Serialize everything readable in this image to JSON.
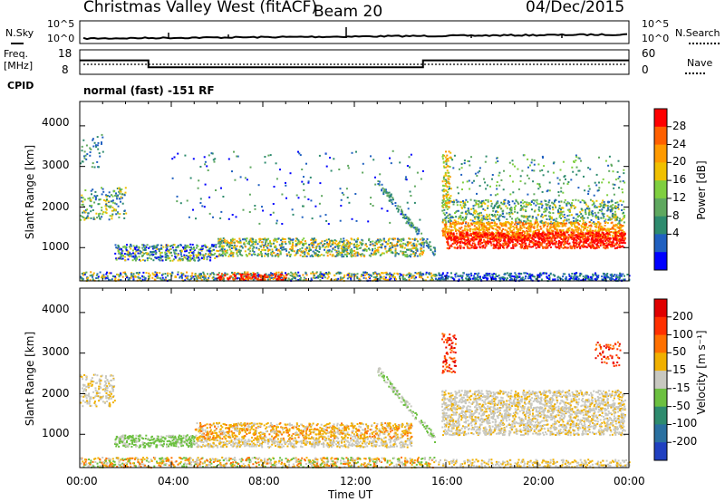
{
  "header": {
    "station": "Christmas Valley West (fitACF)",
    "beam": "Beam 20",
    "date": "04/Dec/2015"
  },
  "strip": {
    "nsky_label": "N.Sky",
    "nsky_ticks": [
      "10^5",
      "10^0"
    ],
    "nsearch_label": "N.Search",
    "nsearch_ticks": [
      "10^5",
      "10^0"
    ],
    "freq_label_1": "Freq.",
    "freq_label_2": "[MHz]",
    "freq_ticks": [
      "18",
      "8"
    ],
    "nave_label": "Nave",
    "nave_ticks": [
      "60",
      "0"
    ],
    "cpid_label": "CPID",
    "cpid_text": "normal (fast) -151 RF"
  },
  "panels": {
    "power": {
      "ylabel": "Slant Range [km]",
      "yticks": [
        "4000",
        "3000",
        "2000",
        "1000"
      ],
      "colorbar_label": "Power [dB]",
      "colorbar_ticks": [
        "28",
        "24",
        "20",
        "16",
        "12",
        "8",
        "4"
      ],
      "colors": [
        "#0000ff",
        "#2060c0",
        "#2e8b6e",
        "#5fa85f",
        "#7fcf3f",
        "#f0c000",
        "#ff9a00",
        "#ff6000",
        "#ff0000"
      ]
    },
    "velocity": {
      "ylabel": "Slant Range [km]",
      "yticks": [
        "4000",
        "3000",
        "2000",
        "1000"
      ],
      "colorbar_label": "Velocity [m s⁻¹]",
      "colorbar_ticks": [
        "200",
        "100",
        "50",
        "15",
        "-15",
        "-50",
        "-100",
        "-200"
      ],
      "colors": [
        "#2040c0",
        "#2a70a0",
        "#2e8b6e",
        "#6cc040",
        "#c8c8c0",
        "#f0b000",
        "#ff7000",
        "#ff3000",
        "#e00000"
      ]
    }
  },
  "xaxis": {
    "ticks": [
      "00:00",
      "04:00",
      "08:00",
      "12:00",
      "16:00",
      "20:00",
      "00:00"
    ],
    "label": "Time UT"
  },
  "chart_data": {
    "type": "heatmap",
    "title": "Christmas Valley West (fitACF) Beam 20 04/Dec/2015",
    "xlabel": "Time UT",
    "ylabel": "Slant Range [km]",
    "x_range_hours": [
      0,
      24
    ],
    "y_range_km": [
      180,
      4600
    ],
    "frequency_mhz": [
      {
        "start_h": 0,
        "end_h": 3,
        "value": 14
      },
      {
        "start_h": 3,
        "end_h": 15,
        "value": 10
      },
      {
        "start_h": 15,
        "end_h": 24,
        "value": 14
      }
    ],
    "power_db_range": [
      0,
      32
    ],
    "velocity_ms_range": [
      -250,
      250
    ]
  }
}
